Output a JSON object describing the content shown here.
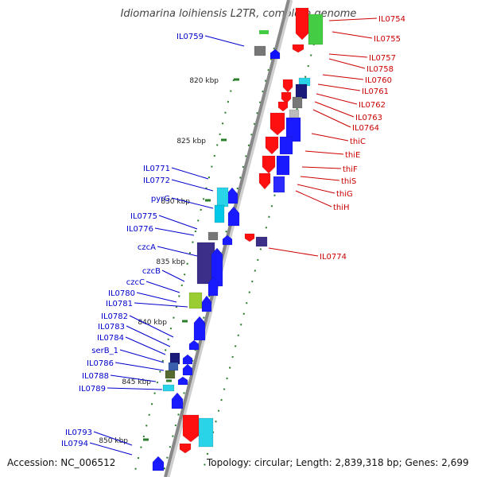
{
  "title": "Idiomarina loihiensis L2TR, complete genome",
  "footer": {
    "accession": "Accession: NC_006512",
    "summary": "Topology: circular; Length: 2,839,318 bp; Genes: 2,699"
  },
  "colors": {
    "forward": "#0000ff",
    "reverse": "#ff0000",
    "left_label": "#0000cc",
    "right_label": "#cc0000",
    "backbone": "#888888",
    "tick": "#2a7d2a"
  },
  "scale_labels": [
    "820 kbp",
    "825 kbp",
    "830 kbp",
    "835 kbp",
    "840 kbp",
    "845 kbp",
    "850 kbp"
  ],
  "left_genes": [
    "IL0759",
    "IL0771",
    "IL0772",
    "pyrG",
    "IL0775",
    "IL0776",
    "czcA",
    "czcB",
    "czcC",
    "IL0780",
    "IL0781",
    "IL0782",
    "IL0783",
    "IL0784",
    "serB_1",
    "IL0786",
    "IL0788",
    "IL0789",
    "IL0793",
    "IL0794"
  ],
  "right_genes": [
    "IL0754",
    "IL0755",
    "IL0757",
    "IL0758",
    "IL0760",
    "IL0761",
    "IL0762",
    "IL0763",
    "IL0764",
    "thiC",
    "thiE",
    "thiF",
    "thiS",
    "thiG",
    "thiH",
    "IL0774"
  ]
}
